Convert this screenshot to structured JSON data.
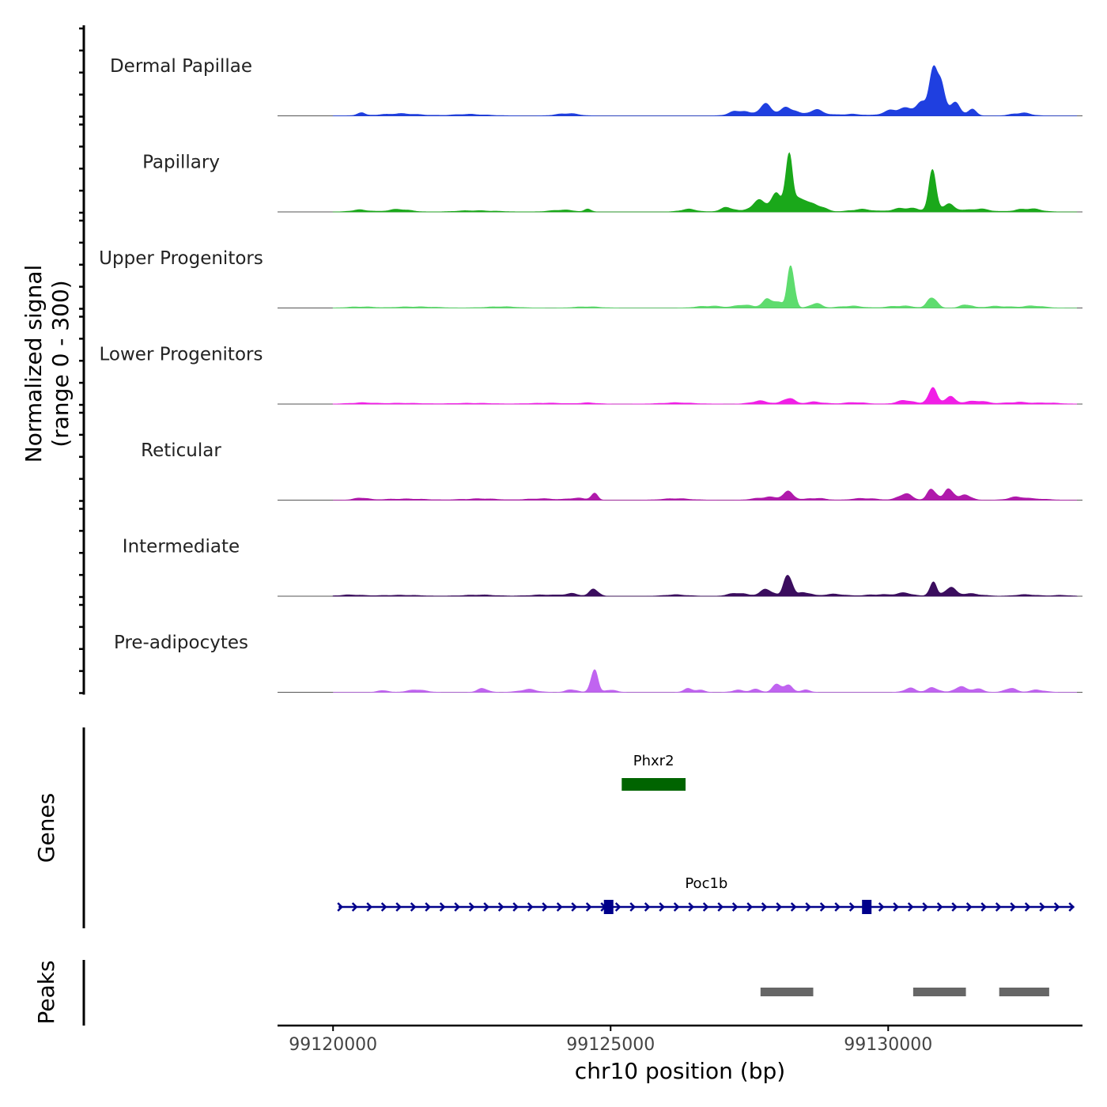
{
  "chart_data": {
    "type": "area",
    "title": "",
    "xlabel": "chr10 position (bp)",
    "ylabel_line1": "Normalized signal",
    "ylabel_line2": "(range 0 - 300)",
    "xlim": [
      99119000,
      99133500
    ],
    "ylim": [
      0,
      300
    ],
    "x_ticks": [
      {
        "value": 99120000,
        "label": "99120000"
      },
      {
        "value": 99125000,
        "label": "99125000"
      },
      {
        "value": 99130000,
        "label": "99130000"
      }
    ],
    "tracks": [
      {
        "name": "Dermal Papillae",
        "color": "#1f3fe0",
        "peaks": [
          [
            99120500,
            15,
            60
          ],
          [
            99121200,
            8,
            400
          ],
          [
            99122500,
            6,
            300
          ],
          [
            99124200,
            10,
            180
          ],
          [
            99127300,
            25,
            150
          ],
          [
            99127800,
            45,
            120
          ],
          [
            99128200,
            45,
            120
          ],
          [
            99128700,
            22,
            150
          ],
          [
            99129300,
            8,
            200
          ],
          [
            99130200,
            35,
            200
          ],
          [
            99130600,
            50,
            150
          ],
          [
            99130800,
            170,
            60
          ],
          [
            99130950,
            120,
            80
          ],
          [
            99131200,
            60,
            100
          ],
          [
            99131500,
            30,
            80
          ],
          [
            99132400,
            15,
            150
          ]
        ]
      },
      {
        "name": "Papillary",
        "color": "#1aa81a",
        "peaks": [
          [
            99120500,
            10,
            150
          ],
          [
            99121200,
            10,
            200
          ],
          [
            99122600,
            6,
            300
          ],
          [
            99124100,
            8,
            200
          ],
          [
            99124600,
            12,
            60
          ],
          [
            99126400,
            10,
            150
          ],
          [
            99127100,
            22,
            120
          ],
          [
            99127700,
            45,
            150
          ],
          [
            99128000,
            80,
            100
          ],
          [
            99128200,
            280,
            60
          ],
          [
            99128400,
            60,
            100
          ],
          [
            99128700,
            30,
            150
          ],
          [
            99129500,
            10,
            200
          ],
          [
            99130300,
            20,
            200
          ],
          [
            99130800,
            145,
            70
          ],
          [
            99131100,
            35,
            120
          ],
          [
            99131600,
            12,
            200
          ],
          [
            99132500,
            15,
            200
          ]
        ]
      },
      {
        "name": "Upper Progenitors",
        "color": "#5edc6e",
        "peaks": [
          [
            99120500,
            6,
            200
          ],
          [
            99121500,
            6,
            300
          ],
          [
            99123000,
            5,
            300
          ],
          [
            99124600,
            6,
            200
          ],
          [
            99126800,
            10,
            200
          ],
          [
            99127400,
            12,
            150
          ],
          [
            99127800,
            40,
            80
          ],
          [
            99128000,
            40,
            80
          ],
          [
            99128250,
            190,
            60
          ],
          [
            99128700,
            20,
            100
          ],
          [
            99129300,
            8,
            200
          ],
          [
            99130200,
            10,
            200
          ],
          [
            99130800,
            50,
            80
          ],
          [
            99131400,
            15,
            100
          ],
          [
            99132000,
            8,
            200
          ],
          [
            99132600,
            8,
            200
          ]
        ]
      },
      {
        "name": "Lower Progenitors",
        "color": "#f11ee6",
        "peaks": [
          [
            99120500,
            6,
            200
          ],
          [
            99121300,
            4,
            300
          ],
          [
            99122500,
            4,
            300
          ],
          [
            99123800,
            4,
            300
          ],
          [
            99124600,
            6,
            150
          ],
          [
            99126200,
            5,
            300
          ],
          [
            99127700,
            15,
            150
          ],
          [
            99128200,
            25,
            100
          ],
          [
            99128700,
            10,
            150
          ],
          [
            99129400,
            6,
            200
          ],
          [
            99130300,
            15,
            150
          ],
          [
            99130800,
            70,
            80
          ],
          [
            99131100,
            35,
            100
          ],
          [
            99131600,
            12,
            200
          ],
          [
            99132300,
            8,
            200
          ],
          [
            99132900,
            5,
            200
          ]
        ]
      },
      {
        "name": "Reticular",
        "color": "#b01aab",
        "peaks": [
          [
            99120500,
            10,
            120
          ],
          [
            99121300,
            6,
            300
          ],
          [
            99122600,
            6,
            300
          ],
          [
            99123700,
            6,
            250
          ],
          [
            99124400,
            10,
            150
          ],
          [
            99124700,
            30,
            60
          ],
          [
            99126200,
            6,
            250
          ],
          [
            99127800,
            15,
            180
          ],
          [
            99128200,
            30,
            100
          ],
          [
            99128700,
            10,
            150
          ],
          [
            99129600,
            8,
            200
          ],
          [
            99130300,
            25,
            120
          ],
          [
            99130800,
            60,
            80
          ],
          [
            99131100,
            55,
            80
          ],
          [
            99131400,
            20,
            100
          ],
          [
            99132300,
            12,
            150
          ],
          [
            99132700,
            5,
            200
          ]
        ]
      },
      {
        "name": "Intermediate",
        "color": "#3b0d5e",
        "peaks": [
          [
            99120300,
            6,
            200
          ],
          [
            99121200,
            5,
            300
          ],
          [
            99122600,
            5,
            300
          ],
          [
            99123800,
            5,
            300
          ],
          [
            99124300,
            12,
            120
          ],
          [
            99124700,
            30,
            80
          ],
          [
            99126200,
            6,
            200
          ],
          [
            99127300,
            14,
            150
          ],
          [
            99127800,
            30,
            120
          ],
          [
            99128200,
            95,
            70
          ],
          [
            99128500,
            20,
            100
          ],
          [
            99129000,
            8,
            200
          ],
          [
            99129800,
            8,
            200
          ],
          [
            99130300,
            12,
            150
          ],
          [
            99130800,
            75,
            60
          ],
          [
            99131100,
            35,
            100
          ],
          [
            99131500,
            10,
            200
          ],
          [
            99132500,
            6,
            200
          ],
          [
            99133100,
            4,
            150
          ]
        ]
      },
      {
        "name": "Pre-adipocytes",
        "color": "#c064f0",
        "peaks": [
          [
            99120900,
            10,
            80
          ],
          [
            99121500,
            10,
            150
          ],
          [
            99122700,
            15,
            90
          ],
          [
            99123500,
            12,
            150
          ],
          [
            99124300,
            15,
            90
          ],
          [
            99124700,
            95,
            60
          ],
          [
            99125000,
            10,
            100
          ],
          [
            99126400,
            18,
            80
          ],
          [
            99126600,
            10,
            80
          ],
          [
            99127300,
            10,
            100
          ],
          [
            99127600,
            14,
            90
          ],
          [
            99128000,
            30,
            80
          ],
          [
            99128200,
            28,
            80
          ],
          [
            99128500,
            12,
            80
          ],
          [
            99130400,
            18,
            100
          ],
          [
            99130800,
            22,
            100
          ],
          [
            99131300,
            22,
            100
          ],
          [
            99131600,
            18,
            100
          ],
          [
            99132200,
            16,
            100
          ],
          [
            99132700,
            12,
            120
          ]
        ]
      }
    ],
    "genes_label": "Genes",
    "genes": [
      {
        "name": "Phxr2",
        "color": "#006400",
        "start": 99125200,
        "end": 99126350,
        "row": 0
      },
      {
        "name": "Poc1b",
        "color": "#00008b",
        "start": 99120100,
        "end": 99133350,
        "row": 1,
        "exons": [
          99124950,
          99129600
        ]
      }
    ],
    "peaks_label": "Peaks",
    "peak_regions": [
      {
        "start": 99127700,
        "end": 99128650
      },
      {
        "start": 99130450,
        "end": 99131400
      },
      {
        "start": 99132000,
        "end": 99132900
      }
    ]
  }
}
